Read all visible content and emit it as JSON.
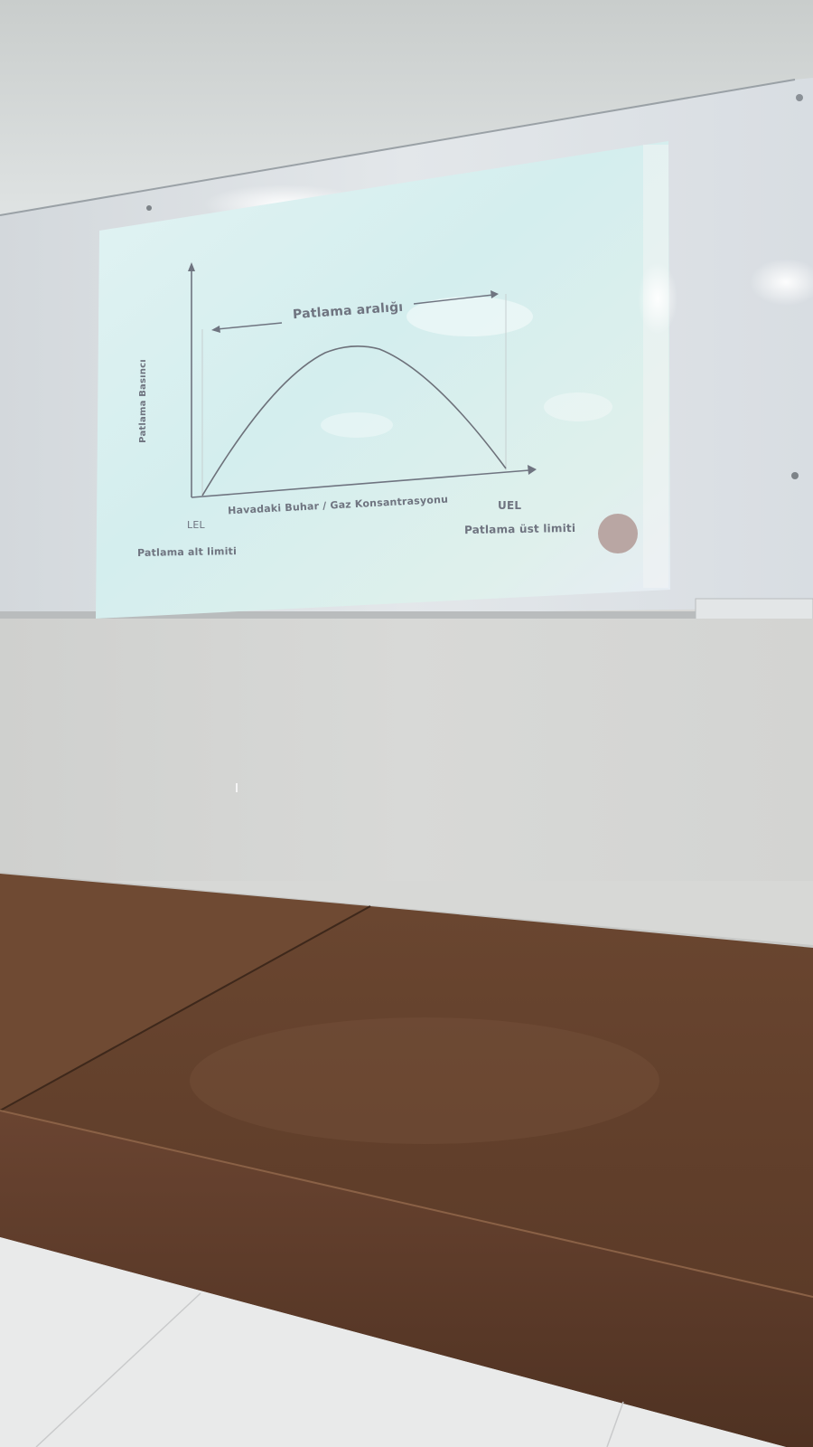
{
  "slide": {
    "range_label": "Patlama aralığı",
    "y_axis_label": "Patlama Basıncı",
    "x_axis_label": "Havadaki Buhar / Gaz Konsantrasyonu",
    "lel": "LEL",
    "uel": "UEL",
    "lower_limit": "Patlama alt limiti",
    "upper_limit": "Patlama üst limiti"
  },
  "colors": {
    "wall": "#d6d7d5",
    "whiteboard": "#dfe2e5",
    "projection": "#d9f0f0",
    "stage": "#6e4a32",
    "floor": "#e8e9e8"
  }
}
